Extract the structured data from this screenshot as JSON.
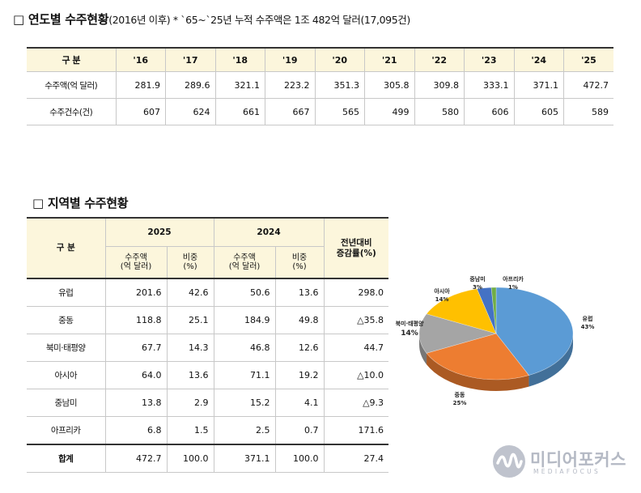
{
  "yearly": {
    "title_box": "□",
    "title_main": "연도별 수주현황",
    "title_sub": "(2016년 이후) * `65~`25년 누적 수주액은 1조 482억 달러(17,095건)",
    "header_label": "구 분",
    "years": [
      "'16",
      "'17",
      "'18",
      "'19",
      "'20",
      "'21",
      "'22",
      "'23",
      "'24",
      "'25"
    ],
    "rows": [
      {
        "label": "수주액(억 달러)",
        "values": [
          "281.9",
          "289.6",
          "321.1",
          "223.2",
          "351.3",
          "305.8",
          "309.8",
          "333.1",
          "371.1",
          "472.7"
        ]
      },
      {
        "label": "수주건수(건)",
        "values": [
          "607",
          "624",
          "661",
          "667",
          "565",
          "499",
          "580",
          "606",
          "605",
          "589"
        ]
      }
    ]
  },
  "regional": {
    "title_box": "□",
    "title_main": "지역별 수주현황",
    "header": {
      "category": "구 분",
      "year_a": "2025",
      "year_b": "2024",
      "change_line1": "전년대비",
      "change_line2": "증감률(%)",
      "amount_line1": "수주액",
      "amount_line2": "(억 달러)",
      "share_line1": "비중",
      "share_line2": "(%)"
    },
    "rows": [
      {
        "region": "유럽",
        "a_amount": "201.6",
        "a_share": "42.6",
        "b_amount": "50.6",
        "b_share": "13.6",
        "change": "298.0"
      },
      {
        "region": "중동",
        "a_amount": "118.8",
        "a_share": "25.1",
        "b_amount": "184.9",
        "b_share": "49.8",
        "change": "△35.8"
      },
      {
        "region": "북미·태평양",
        "a_amount": "67.7",
        "a_share": "14.3",
        "b_amount": "46.8",
        "b_share": "12.6",
        "change": "44.7"
      },
      {
        "region": "아시아",
        "a_amount": "64.0",
        "a_share": "13.6",
        "b_amount": "71.1",
        "b_share": "19.2",
        "change": "△10.0"
      },
      {
        "region": "중남미",
        "a_amount": "13.8",
        "a_share": "2.9",
        "b_amount": "15.2",
        "b_share": "4.1",
        "change": "△9.3"
      },
      {
        "region": "아프리카",
        "a_amount": "6.8",
        "a_share": "1.5",
        "b_amount": "2.5",
        "b_share": "0.7",
        "change": "171.6"
      }
    ],
    "total": {
      "region": "합계",
      "a_amount": "472.7",
      "a_share": "100.0",
      "b_amount": "371.1",
      "b_share": "100.0",
      "change": "27.4"
    }
  },
  "chart_data": {
    "type": "pie",
    "slices": [
      {
        "name": "유럽",
        "pct_label": "43%",
        "value": 43,
        "color": "#5b9bd5"
      },
      {
        "name": "중동",
        "pct_label": "25%",
        "value": 25,
        "color": "#ed7d31"
      },
      {
        "name": "북미·태평양",
        "pct_label": "14%",
        "value": 14,
        "color": "#a5a5a5"
      },
      {
        "name": "아시아",
        "pct_label": "14%",
        "value": 14,
        "color": "#ffc000"
      },
      {
        "name": "중남미",
        "pct_label": "3%",
        "value": 3,
        "color": "#4472c4"
      },
      {
        "name": "아프리카",
        "pct_label": "1%",
        "value": 1,
        "color": "#70ad47"
      }
    ]
  },
  "watermark": {
    "brand": "미디어포커스",
    "brand_en": "MEDIAFOCUS",
    "logo_color": "#b4b9c4"
  }
}
